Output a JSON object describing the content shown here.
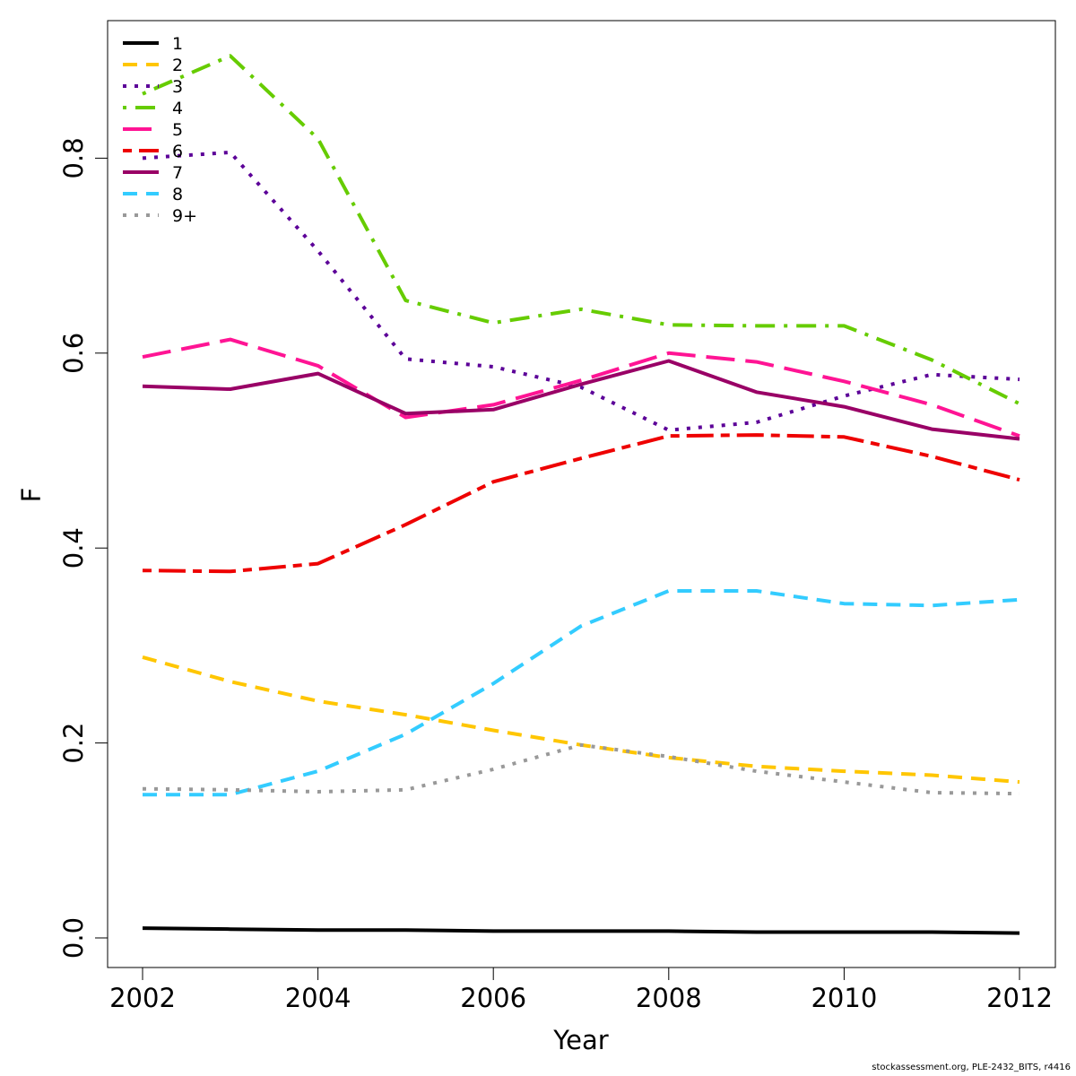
{
  "chart_data": {
    "type": "line",
    "xlabel": "Year",
    "ylabel": "F",
    "xlim": [
      2002,
      2012
    ],
    "ylim": [
      0,
      0.9
    ],
    "x_ticks": [
      "2002",
      "2004",
      "2006",
      "2008",
      "2010",
      "2012"
    ],
    "y_ticks": [
      "0.0",
      "0.2",
      "0.4",
      "0.6",
      "0.8"
    ],
    "legend_position": "top-left",
    "grid": false,
    "x": [
      2002,
      2003,
      2004,
      2005,
      2006,
      2007,
      2008,
      2009,
      2010,
      2011,
      2012
    ],
    "series": [
      {
        "name": "1",
        "color": "#000000",
        "dash": "solid",
        "values": [
          0.01,
          0.009,
          0.008,
          0.008,
          0.007,
          0.007,
          0.007,
          0.006,
          0.006,
          0.006,
          0.005
        ]
      },
      {
        "name": "2",
        "color": "#FFC600",
        "dash": "dashed",
        "values": [
          0.288,
          0.263,
          0.243,
          0.229,
          0.213,
          0.198,
          0.185,
          0.176,
          0.171,
          0.167,
          0.16
        ]
      },
      {
        "name": "3",
        "color": "#5C0098",
        "dash": "dotted",
        "values": [
          0.8,
          0.806,
          0.705,
          0.594,
          0.586,
          0.565,
          0.521,
          0.529,
          0.556,
          0.578,
          0.573
        ]
      },
      {
        "name": "4",
        "color": "#66CC00",
        "dash": "dotdash",
        "values": [
          0.866,
          0.905,
          0.82,
          0.654,
          0.631,
          0.645,
          0.629,
          0.628,
          0.628,
          0.593,
          0.548
        ]
      },
      {
        "name": "5",
        "color": "#FF1494",
        "dash": "longdash",
        "values": [
          0.596,
          0.614,
          0.587,
          0.534,
          0.547,
          0.572,
          0.6,
          0.591,
          0.571,
          0.547,
          0.515
        ]
      },
      {
        "name": "6",
        "color": "#EE0000",
        "dash": "twodash",
        "values": [
          0.377,
          0.376,
          0.384,
          0.424,
          0.468,
          0.492,
          0.515,
          0.516,
          0.514,
          0.494,
          0.47
        ]
      },
      {
        "name": "7",
        "color": "#990066",
        "dash": "solid",
        "values": [
          0.566,
          0.563,
          0.579,
          0.538,
          0.542,
          0.568,
          0.592,
          0.56,
          0.545,
          0.522,
          0.512
        ]
      },
      {
        "name": "8",
        "color": "#33CCFF",
        "dash": "dashed",
        "values": [
          0.147,
          0.147,
          0.171,
          0.209,
          0.261,
          0.32,
          0.356,
          0.356,
          0.343,
          0.341,
          0.347
        ]
      },
      {
        "name": "9+",
        "color": "#999999",
        "dash": "dotted",
        "values": [
          0.153,
          0.152,
          0.15,
          0.152,
          0.173,
          0.198,
          0.186,
          0.171,
          0.16,
          0.149,
          0.148
        ]
      }
    ]
  },
  "footer": {
    "credit": "stockassessment.org, PLE-2432_BITS, r4416"
  }
}
